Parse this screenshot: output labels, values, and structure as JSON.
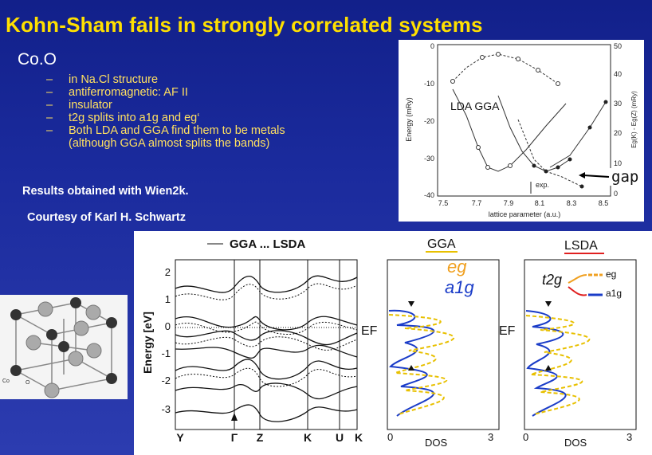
{
  "slide": {
    "title": "Kohn-Sham fails in strongly correlated systems",
    "topic": "Co.O",
    "bullets": [
      {
        "dash": "–",
        "text": "in Na.Cl structure"
      },
      {
        "dash": "–",
        "text": "antiferromagnetic: AF II"
      },
      {
        "dash": "–",
        "text": "insulator"
      },
      {
        "dash": "–",
        "text": "t2g splits into a1g and eg‘"
      },
      {
        "dash": "–",
        "text": "Both LDA and GGA find them to be metals (although GGA almost splits the bands)"
      }
    ],
    "note_results": "Results obtained with Wien2k.",
    "note_courtesy": "Courtesy of Karl H. Schwartz"
  },
  "energy_plot": {
    "legend": "LDA  GGA",
    "ylabel_left": "Energy (mRy)",
    "ylabel_right": "Eg(K) - Eg(Z) (mRy)",
    "xlabel": "lattice parameter (a.u.)",
    "exp_label": "exp.",
    "gap_label": "gap",
    "x_ticks": [
      "7.5",
      "7.7",
      "7.9",
      "8.1",
      "8.3",
      "8.5"
    ],
    "y_left_ticks": [
      "0",
      "-10",
      "-20",
      "-30",
      "-40"
    ],
    "y_right_ticks": [
      "50",
      "40",
      "30",
      "20",
      "10",
      "0"
    ]
  },
  "bands_plot": {
    "legend": "GGA ... LSDA",
    "ylabel": "Energy [eV]",
    "y_ticks": [
      "2",
      "1",
      "0",
      "-1",
      "-2",
      "-3"
    ],
    "k_labels": [
      "Y",
      "Γ",
      "Z",
      "K",
      "U",
      "K"
    ],
    "fermi_label": "EF"
  },
  "dos_gga": {
    "title": "GGA",
    "eg_label": "eg",
    "a1g_label": "a1g",
    "fermi_label": "EF",
    "x_label": "DOS",
    "x_ticks": [
      "0",
      "3"
    ]
  },
  "dos_lsda": {
    "title": "LSDA",
    "t2g_label": "t2g",
    "eg_label": "eg",
    "a1g_label": "a1g",
    "x_label": "DOS",
    "x_ticks": [
      "0",
      "3"
    ]
  },
  "crystal": {
    "legend_co": "Co",
    "legend_o": "O"
  },
  "colors": {
    "title": "#ffe000",
    "bullet_text": "#ffe060",
    "note_text": "#ffffff",
    "dos_blue": "#1a3cc8",
    "dos_yellow": "#e8c000",
    "annotation_red": "#e02020",
    "annotation_orange": "#f0a020"
  }
}
